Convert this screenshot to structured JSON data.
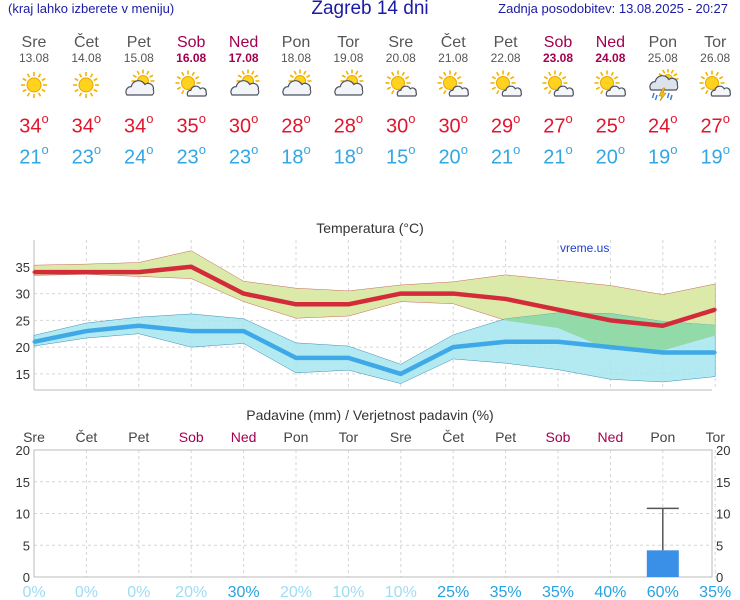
{
  "header": {
    "left_note": "(kraj lahko izberete v meniju)",
    "title": "Zagreb 14 dni",
    "updated": "Zadnja posodobitev: 13.08.2025 - 20:27"
  },
  "days": [
    {
      "name": "Sre",
      "date": "13.08",
      "weekend": false,
      "icon": "sun-icon",
      "tmax": "34",
      "tmin": "21"
    },
    {
      "name": "Čet",
      "date": "14.08",
      "weekend": false,
      "icon": "sun-icon",
      "tmax": "34",
      "tmin": "23"
    },
    {
      "name": "Pet",
      "date": "15.08",
      "weekend": false,
      "icon": "cloud-sun-icon",
      "tmax": "34",
      "tmin": "24"
    },
    {
      "name": "Sob",
      "date": "16.08",
      "weekend": true,
      "icon": "sun-cloud-icon",
      "tmax": "35",
      "tmin": "23"
    },
    {
      "name": "Ned",
      "date": "17.08",
      "weekend": true,
      "icon": "cloud-sun-icon",
      "tmax": "30",
      "tmin": "23"
    },
    {
      "name": "Pon",
      "date": "18.08",
      "weekend": false,
      "icon": "cloud-sun-icon",
      "tmax": "28",
      "tmin": "18"
    },
    {
      "name": "Tor",
      "date": "19.08",
      "weekend": false,
      "icon": "cloud-sun-icon",
      "tmax": "28",
      "tmin": "18"
    },
    {
      "name": "Sre",
      "date": "20.08",
      "weekend": false,
      "icon": "sun-cloud-icon",
      "tmax": "30",
      "tmin": "15"
    },
    {
      "name": "Čet",
      "date": "21.08",
      "weekend": false,
      "icon": "sun-cloud-icon",
      "tmax": "30",
      "tmin": "20"
    },
    {
      "name": "Pet",
      "date": "22.08",
      "weekend": false,
      "icon": "sun-cloud-icon",
      "tmax": "29",
      "tmin": "21"
    },
    {
      "name": "Sob",
      "date": "23.08",
      "weekend": true,
      "icon": "sun-cloud-icon",
      "tmax": "27",
      "tmin": "21"
    },
    {
      "name": "Ned",
      "date": "24.08",
      "weekend": true,
      "icon": "sun-cloud-icon",
      "tmax": "25",
      "tmin": "20"
    },
    {
      "name": "Pon",
      "date": "25.08",
      "weekend": false,
      "icon": "storm-rain-icon",
      "tmax": "24",
      "tmin": "19"
    },
    {
      "name": "Tor",
      "date": "26.08",
      "weekend": false,
      "icon": "sun-cloud-icon",
      "tmax": "27",
      "tmin": "19"
    }
  ],
  "degree_symbol": "o",
  "chart_data": [
    {
      "type": "line",
      "title": "Temperatura (°C)",
      "watermark": "vreme.us",
      "categories": [
        "Sre",
        "Čet",
        "Pet",
        "Sob",
        "Ned",
        "Pon",
        "Tor",
        "Sre",
        "Čet",
        "Pet",
        "Sob",
        "Ned",
        "Pon",
        "Tor"
      ],
      "ylim": [
        12,
        40
      ],
      "yticks": [
        15,
        20,
        25,
        30,
        35
      ],
      "grid": true,
      "series": [
        {
          "values": [
            34,
            34,
            34,
            35,
            30,
            28,
            28,
            30,
            30,
            29,
            27,
            25,
            24,
            27
          ]
        },
        {
          "values": [
            21,
            23,
            24,
            23,
            23,
            18,
            18,
            15,
            20,
            21,
            21,
            20,
            19,
            19
          ]
        }
      ],
      "max_band_upper": [
        35.3,
        35.5,
        35.8,
        38,
        32.3,
        31,
        30.5,
        31.6,
        32.2,
        33.5,
        32.5,
        31.5,
        29.8,
        31.8
      ],
      "max_band_lower": [
        33.4,
        33.6,
        33.2,
        32.8,
        28.5,
        25.4,
        25.8,
        28.5,
        28.1,
        25,
        23.6,
        19.5,
        19.4,
        22.2
      ],
      "min_band_upper": [
        22.2,
        24.5,
        25.6,
        26.2,
        25.3,
        20.8,
        20.2,
        16.8,
        22.3,
        25.3,
        26.4,
        26.3,
        24.8,
        24.1
      ],
      "min_band_lower": [
        20.2,
        21.7,
        22.5,
        20,
        20.7,
        15.2,
        15.7,
        13.2,
        17.8,
        17,
        15.8,
        14,
        13.5,
        14.5
      ],
      "colors": {
        "max": "#d42b3a",
        "min": "#3fa9e8",
        "max_band": "#dbeaa8",
        "min_band": "#a6e6f0",
        "overlap": "#8fd8a0"
      }
    },
    {
      "type": "bar",
      "title": "Padavine (mm) / Verjetnost padavin (%)",
      "categories": [
        "Sre",
        "Čet",
        "Pet",
        "Sob",
        "Ned",
        "Pon",
        "Tor",
        "Sre",
        "Čet",
        "Pet",
        "Sob",
        "Ned",
        "Pon",
        "Tor"
      ],
      "values": [
        0,
        0,
        0,
        0,
        0,
        0,
        0,
        0,
        0,
        0,
        0,
        0,
        4.2,
        0
      ],
      "error_high": [
        null,
        null,
        null,
        null,
        null,
        null,
        null,
        null,
        null,
        null,
        null,
        null,
        10.8,
        null
      ],
      "probability": [
        "0%",
        "0%",
        "0%",
        "20%",
        "30%",
        "20%",
        "10%",
        "10%",
        "25%",
        "35%",
        "35%",
        "40%",
        "60%",
        "35%"
      ],
      "ylim": [
        0,
        20
      ],
      "yticks": [
        0,
        5,
        10,
        15,
        20
      ],
      "grid": true,
      "colors": {
        "bar": "#3a8fe6",
        "prob_low": "#9fdcf2",
        "prob_high": "#27a3e0"
      }
    }
  ]
}
